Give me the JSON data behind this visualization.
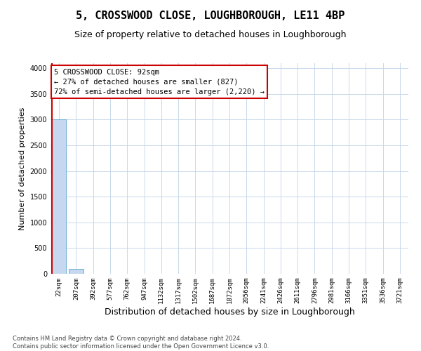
{
  "title": "5, CROSSWOOD CLOSE, LOUGHBOROUGH, LE11 4BP",
  "subtitle": "Size of property relative to detached houses in Loughborough",
  "xlabel": "Distribution of detached houses by size in Loughborough",
  "ylabel": "Number of detached properties",
  "footnote": "Contains HM Land Registry data © Crown copyright and database right 2024.\nContains public sector information licensed under the Open Government Licence v3.0.",
  "categories": [
    "22sqm",
    "207sqm",
    "392sqm",
    "577sqm",
    "762sqm",
    "947sqm",
    "1132sqm",
    "1317sqm",
    "1502sqm",
    "1687sqm",
    "1872sqm",
    "2056sqm",
    "2241sqm",
    "2426sqm",
    "2611sqm",
    "2796sqm",
    "2981sqm",
    "3166sqm",
    "3351sqm",
    "3536sqm",
    "3721sqm"
  ],
  "values": [
    3000,
    100,
    0,
    0,
    0,
    0,
    0,
    0,
    0,
    0,
    0,
    0,
    0,
    0,
    0,
    0,
    0,
    0,
    0,
    0,
    0
  ],
  "bar_color": "#c5d8f0",
  "bar_edge_color": "#6aaed6",
  "ylim": [
    0,
    4100
  ],
  "yticks": [
    0,
    500,
    1000,
    1500,
    2000,
    2500,
    3000,
    3500,
    4000
  ],
  "annotation_text": "5 CROSSWOOD CLOSE: 92sqm\n← 27% of detached houses are smaller (827)\n72% of semi-detached houses are larger (2,220) →",
  "annotation_box_color": "#ffffff",
  "annotation_border_color": "#cc0000",
  "property_line_color": "#cc0000",
  "bg_color": "#ffffff",
  "grid_color": "#c8d8ea",
  "title_fontsize": 11,
  "subtitle_fontsize": 9,
  "tick_fontsize": 6.5,
  "ylabel_fontsize": 8,
  "xlabel_fontsize": 9
}
